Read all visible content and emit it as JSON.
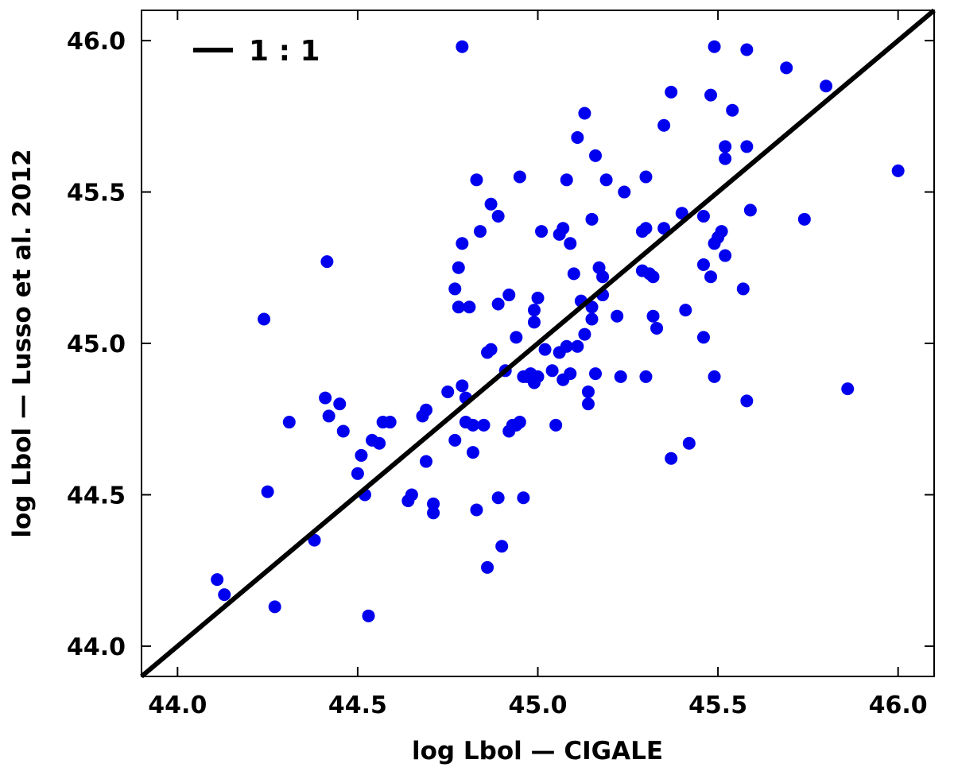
{
  "chart_data": {
    "type": "scatter",
    "title": "",
    "xlabel": "log Lbol — CIGALE",
    "ylabel": "log Lbol — Lusso et al. 2012",
    "xlim": [
      43.9,
      46.1
    ],
    "ylim": [
      43.9,
      46.1
    ],
    "x_ticks": [
      "44.0",
      "44.5",
      "45.0",
      "45.5",
      "46.0"
    ],
    "y_ticks": [
      "44.0",
      "44.5",
      "45.0",
      "45.5",
      "46.0"
    ],
    "grid": false,
    "legend_position": "top-left",
    "legend": [
      {
        "label": "1 : 1",
        "style": "line",
        "color": "#000000"
      }
    ],
    "reference_line": {
      "name": "1 : 1",
      "slope": 1,
      "intercept": 0,
      "color": "#000000"
    },
    "series": [
      {
        "color": "#0000ee",
        "points": [
          [
            44.11,
            44.22
          ],
          [
            44.13,
            44.17
          ],
          [
            44.24,
            45.08
          ],
          [
            44.25,
            44.51
          ],
          [
            44.27,
            44.13
          ],
          [
            44.31,
            44.74
          ],
          [
            44.38,
            44.35
          ],
          [
            44.41,
            44.82
          ],
          [
            44.415,
            45.27
          ],
          [
            44.42,
            44.76
          ],
          [
            44.45,
            44.8
          ],
          [
            44.46,
            44.71
          ],
          [
            44.5,
            44.57
          ],
          [
            44.51,
            44.63
          ],
          [
            44.52,
            44.5
          ],
          [
            44.53,
            44.1
          ],
          [
            44.54,
            44.68
          ],
          [
            44.56,
            44.67
          ],
          [
            44.57,
            44.74
          ],
          [
            44.59,
            44.74
          ],
          [
            44.64,
            44.48
          ],
          [
            44.65,
            44.5
          ],
          [
            44.68,
            44.76
          ],
          [
            44.69,
            44.61
          ],
          [
            44.69,
            44.78
          ],
          [
            44.71,
            44.47
          ],
          [
            44.71,
            44.44
          ],
          [
            44.75,
            44.84
          ],
          [
            44.77,
            44.68
          ],
          [
            44.77,
            45.18
          ],
          [
            44.78,
            45.25
          ],
          [
            44.78,
            45.12
          ],
          [
            44.79,
            44.86
          ],
          [
            44.79,
            45.33
          ],
          [
            44.8,
            44.82
          ],
          [
            44.8,
            44.74
          ],
          [
            44.79,
            45.98
          ],
          [
            44.81,
            45.12
          ],
          [
            44.82,
            44.73
          ],
          [
            44.82,
            44.64
          ],
          [
            44.83,
            44.45
          ],
          [
            44.83,
            45.54
          ],
          [
            44.84,
            45.37
          ],
          [
            44.85,
            44.73
          ],
          [
            44.86,
            44.26
          ],
          [
            44.86,
            44.97
          ],
          [
            44.87,
            44.98
          ],
          [
            44.87,
            45.46
          ],
          [
            44.89,
            45.42
          ],
          [
            44.89,
            45.13
          ],
          [
            44.89,
            44.49
          ],
          [
            44.9,
            44.33
          ],
          [
            44.91,
            44.91
          ],
          [
            44.92,
            45.16
          ],
          [
            44.92,
            44.71
          ],
          [
            44.93,
            44.73
          ],
          [
            44.94,
            45.02
          ],
          [
            44.94,
            44.73
          ],
          [
            44.95,
            45.55
          ],
          [
            44.95,
            44.74
          ],
          [
            44.96,
            44.49
          ],
          [
            44.96,
            44.89
          ],
          [
            44.97,
            44.89
          ],
          [
            44.98,
            44.9
          ],
          [
            44.99,
            45.11
          ],
          [
            44.99,
            45.07
          ],
          [
            44.99,
            44.87
          ],
          [
            45.0,
            45.15
          ],
          [
            45.0,
            44.89
          ],
          [
            45.01,
            45.37
          ],
          [
            45.02,
            44.98
          ],
          [
            45.04,
            44.91
          ],
          [
            45.05,
            44.73
          ],
          [
            45.06,
            44.97
          ],
          [
            45.06,
            45.36
          ],
          [
            45.07,
            44.88
          ],
          [
            45.07,
            45.38
          ],
          [
            45.08,
            45.54
          ],
          [
            45.08,
            44.99
          ],
          [
            45.09,
            45.33
          ],
          [
            45.09,
            44.9
          ],
          [
            45.1,
            45.23
          ],
          [
            45.11,
            44.99
          ],
          [
            45.11,
            45.68
          ],
          [
            45.12,
            45.14
          ],
          [
            45.13,
            45.76
          ],
          [
            45.13,
            45.03
          ],
          [
            45.14,
            44.84
          ],
          [
            45.14,
            44.8
          ],
          [
            45.15,
            45.08
          ],
          [
            45.15,
            45.41
          ],
          [
            45.15,
            45.12
          ],
          [
            45.16,
            44.9
          ],
          [
            45.16,
            45.62
          ],
          [
            45.17,
            45.25
          ],
          [
            45.18,
            45.22
          ],
          [
            45.18,
            45.16
          ],
          [
            45.19,
            45.54
          ],
          [
            45.22,
            45.09
          ],
          [
            45.23,
            44.89
          ],
          [
            45.24,
            45.5
          ],
          [
            45.29,
            45.37
          ],
          [
            45.29,
            45.24
          ],
          [
            45.3,
            45.38
          ],
          [
            45.3,
            45.55
          ],
          [
            45.3,
            44.89
          ],
          [
            45.31,
            45.23
          ],
          [
            45.32,
            45.22
          ],
          [
            45.32,
            45.09
          ],
          [
            45.33,
            45.05
          ],
          [
            45.35,
            45.38
          ],
          [
            45.35,
            45.72
          ],
          [
            45.37,
            44.62
          ],
          [
            45.37,
            45.83
          ],
          [
            45.4,
            45.43
          ],
          [
            45.41,
            45.11
          ],
          [
            45.42,
            44.67
          ],
          [
            45.46,
            45.42
          ],
          [
            45.46,
            45.26
          ],
          [
            45.46,
            45.02
          ],
          [
            45.48,
            45.82
          ],
          [
            45.48,
            45.22
          ],
          [
            45.49,
            45.98
          ],
          [
            45.49,
            45.33
          ],
          [
            45.49,
            44.89
          ],
          [
            45.5,
            45.35
          ],
          [
            45.51,
            45.37
          ],
          [
            45.52,
            45.65
          ],
          [
            45.52,
            45.61
          ],
          [
            45.52,
            45.29
          ],
          [
            45.54,
            45.77
          ],
          [
            45.57,
            45.18
          ],
          [
            45.58,
            45.97
          ],
          [
            45.58,
            45.65
          ],
          [
            45.58,
            44.81
          ],
          [
            45.59,
            45.44
          ],
          [
            45.69,
            45.91
          ],
          [
            45.74,
            45.41
          ],
          [
            45.8,
            45.85
          ],
          [
            45.86,
            44.85
          ],
          [
            46.0,
            45.57
          ]
        ]
      }
    ]
  }
}
